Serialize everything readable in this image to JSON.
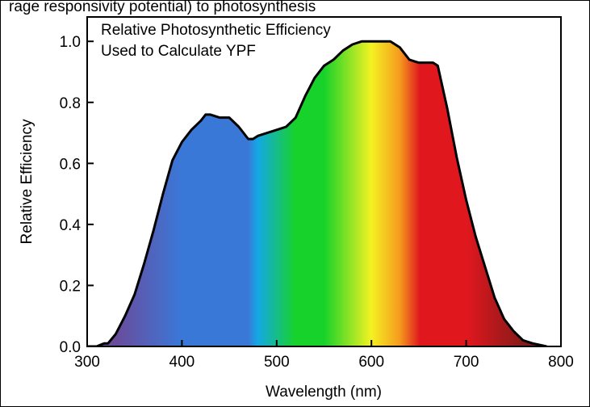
{
  "top_caption": "rage responsivity potential) to photosynthesis",
  "chart_data": {
    "type": "area",
    "title": "",
    "annotation_lines": [
      "Relative Photosynthetic Efficiency",
      "Used to Calculate YPF"
    ],
    "xlabel": "Wavelength (nm)",
    "ylabel": "Relative Efficiency",
    "xlim": [
      300,
      800
    ],
    "ylim": [
      0,
      1.08
    ],
    "xticks": [
      300,
      400,
      500,
      600,
      700,
      800
    ],
    "yticks": [
      0.0,
      0.2,
      0.4,
      0.6,
      0.8,
      1.0
    ],
    "ytick_labels": [
      "0.0",
      "0.2",
      "0.4",
      "0.6",
      "0.8",
      "1.0"
    ],
    "grid": false,
    "fill": "visible spectrum gradient",
    "line_color": "#000000",
    "colors": {
      "violet": "#6a4c9c",
      "blue": "#3a78d8",
      "cyan": "#14a8e6",
      "green": "#17d22a",
      "yellow": "#f4f222",
      "orange": "#f59a1e",
      "red": "#e0181e",
      "dark_red": "#6b1a18"
    },
    "series": [
      {
        "x": [
          300,
          310,
          318,
          322,
          330,
          340,
          350,
          360,
          370,
          380,
          390,
          400,
          410,
          420,
          425,
          430,
          440,
          445,
          450,
          460,
          470,
          475,
          480,
          490,
          500,
          510,
          520,
          530,
          540,
          550,
          560,
          570,
          580,
          590,
          600,
          610,
          620,
          630,
          640,
          650,
          660,
          665,
          670,
          680,
          690,
          700,
          710,
          720,
          730,
          740,
          750,
          760,
          770,
          785
        ],
        "y": [
          0.0,
          0.0,
          0.01,
          0.01,
          0.04,
          0.1,
          0.17,
          0.27,
          0.38,
          0.5,
          0.61,
          0.67,
          0.71,
          0.74,
          0.76,
          0.76,
          0.75,
          0.75,
          0.75,
          0.72,
          0.68,
          0.68,
          0.69,
          0.7,
          0.71,
          0.72,
          0.75,
          0.82,
          0.88,
          0.92,
          0.94,
          0.97,
          0.99,
          1.0,
          1.0,
          1.0,
          1.0,
          0.98,
          0.94,
          0.93,
          0.93,
          0.93,
          0.92,
          0.78,
          0.62,
          0.48,
          0.36,
          0.26,
          0.16,
          0.09,
          0.05,
          0.02,
          0.01,
          0.0
        ]
      }
    ]
  }
}
